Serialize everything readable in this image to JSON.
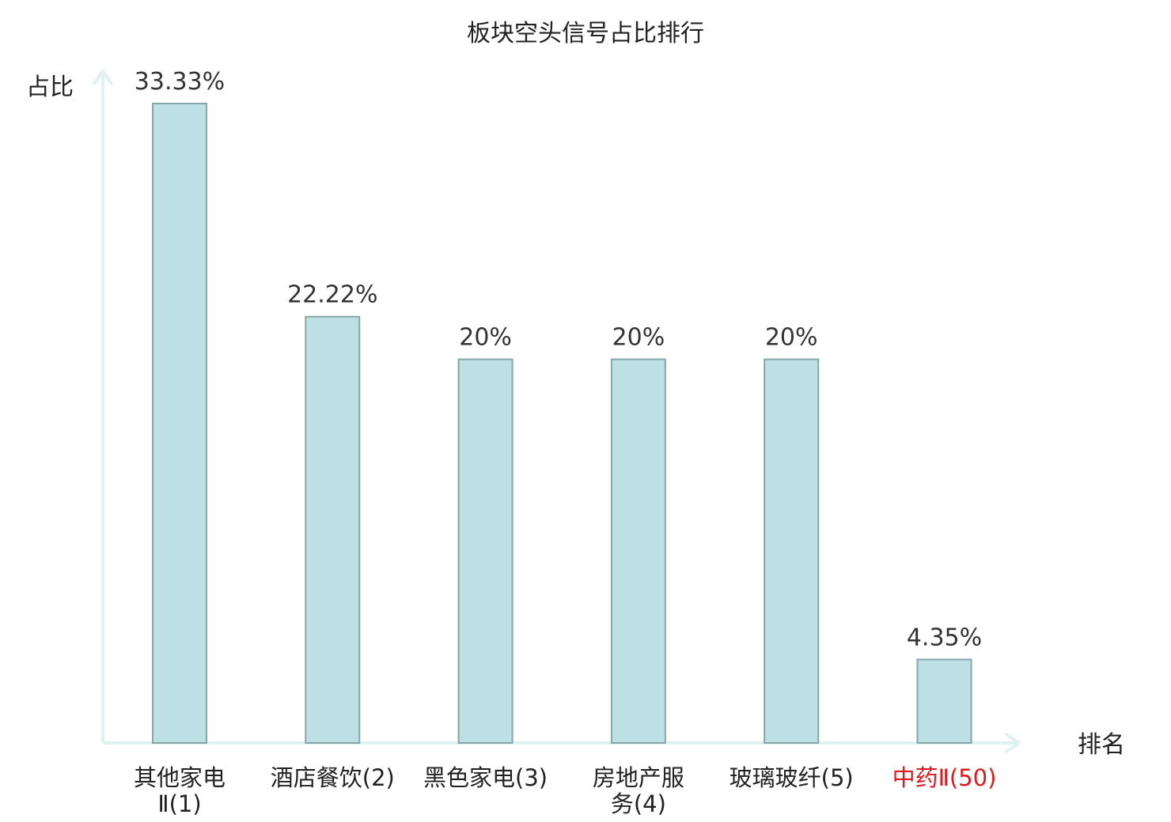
{
  "chart_data": {
    "type": "bar",
    "title": "板块空头信号占比排行",
    "ylabel": "占比",
    "xlabel": "排名",
    "categories": [
      "其他家电Ⅱ(1)",
      "酒店餐饮(2)",
      "黑色家电(3)",
      "房地产服务(4)",
      "玻璃玻纤(5)",
      "中药Ⅱ(50)"
    ],
    "category_lines": [
      [
        "其他家电",
        "Ⅱ(1)"
      ],
      [
        "酒店餐饮(2)"
      ],
      [
        "黑色家电(3)"
      ],
      [
        "房地产服",
        "务(4)"
      ],
      [
        "玻璃玻纤(5)"
      ],
      [
        "中药Ⅱ(50)"
      ]
    ],
    "values": [
      33.33,
      22.22,
      20,
      20,
      20,
      4.35
    ],
    "value_labels": [
      "33.33%",
      "22.22%",
      "20%",
      "20%",
      "20%",
      "4.35%"
    ],
    "highlight_index": 5,
    "ylim": [
      0,
      35
    ],
    "grid": false,
    "legend": "none"
  },
  "colors": {
    "bar_fill": "#bce0e3",
    "bar_stroke": "#86a6a8",
    "axis": "#dff2f0",
    "text": "#222222",
    "value_text": "#333333",
    "highlight_text": "#e0191e"
  }
}
